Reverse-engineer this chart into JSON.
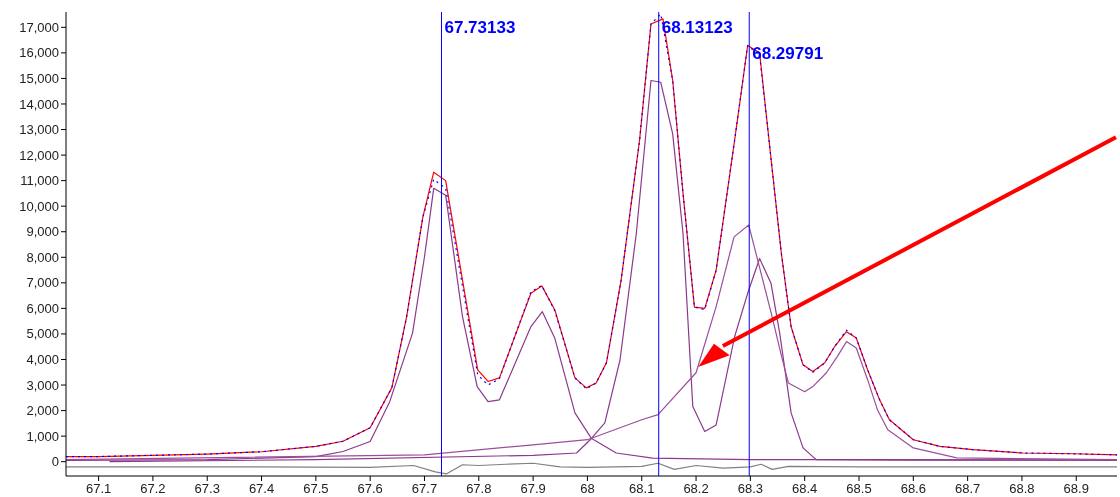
{
  "chart_data": {
    "type": "line",
    "xlim": [
      67.04,
      68.975
    ],
    "ylim": [
      -560,
      17600
    ],
    "xticks": [
      67.1,
      67.2,
      67.3,
      67.4,
      67.5,
      67.6,
      67.7,
      67.8,
      67.9,
      68,
      68.1,
      68.2,
      68.3,
      68.4,
      68.5,
      68.6,
      68.7,
      68.8,
      68.9
    ],
    "yticks": [
      0,
      {
        "value": 1000,
        "label": "1,000"
      },
      {
        "value": 2000,
        "label": "2,000"
      },
      {
        "value": 3000,
        "label": "3,000"
      },
      {
        "value": 4000,
        "label": "4,000"
      },
      {
        "value": 5000,
        "label": "5,000"
      },
      {
        "value": 6000,
        "label": "6,000"
      },
      {
        "value": 7000,
        "label": "7,000"
      },
      {
        "value": 8000,
        "label": "8,000"
      },
      {
        "value": 9000,
        "label": "9,000"
      },
      {
        "value": 10000,
        "label": "10,000"
      },
      {
        "value": 11000,
        "label": "11,000"
      },
      {
        "value": 12000,
        "label": "12,000"
      },
      {
        "value": 13000,
        "label": "13,000"
      },
      {
        "value": 14000,
        "label": "14,000"
      },
      {
        "value": 15000,
        "label": "15,000"
      },
      {
        "value": 16000,
        "label": "16,000"
      },
      {
        "value": 17000,
        "label": "17,000"
      }
    ],
    "grid": false,
    "series": [
      {
        "color": "#808080",
        "x": [
          67.04,
          67.3,
          67.6,
          67.68,
          67.72,
          67.74,
          67.77,
          67.8,
          67.85,
          67.9,
          67.95,
          68.0,
          68.1,
          68.13,
          68.16,
          68.2,
          68.25,
          68.3,
          68.32,
          68.34,
          68.37,
          68.5,
          68.975
        ],
        "values": [
          -200,
          -200,
          -220,
          -150,
          -400,
          -480,
          -120,
          -150,
          -100,
          -60,
          -200,
          -220,
          -180,
          -60,
          -300,
          -150,
          -250,
          -200,
          -100,
          -300,
          -180,
          -200,
          -200
        ]
      },
      {
        "color": "#8b3a8b",
        "x": [
          67.04,
          67.3,
          67.5,
          67.55,
          67.6,
          67.636,
          67.678,
          67.7,
          67.717,
          67.739,
          67.77,
          67.797,
          67.817,
          67.838,
          67.896,
          67.917,
          67.94,
          67.977,
          68.007,
          68.053,
          68.12,
          68.3,
          68.5,
          68.975
        ],
        "values": [
          50,
          80,
          200,
          400,
          790,
          2350,
          5030,
          8020,
          10700,
          10430,
          5680,
          2940,
          2350,
          2420,
          5290,
          5870,
          4830,
          1910,
          920,
          340,
          140,
          80,
          80,
          60
        ]
      },
      {
        "color": "#8b3a8b",
        "x": [
          67.12,
          67.5,
          67.9,
          67.98,
          68.007,
          68.032,
          68.06,
          68.09,
          68.117,
          68.135,
          68.157,
          68.176,
          68.194,
          68.216,
          68.237,
          68.271,
          68.295,
          68.317,
          68.338,
          68.354,
          68.375,
          68.397,
          68.421,
          68.6,
          68.975
        ],
        "values": [
          0,
          80,
          250,
          340,
          900,
          1520,
          3980,
          8930,
          14920,
          14850,
          12830,
          8930,
          2160,
          1180,
          1440,
          4890,
          6590,
          7950,
          6980,
          5030,
          1910,
          540,
          80,
          60,
          60
        ]
      },
      {
        "color": "#9b4f9b",
        "x": [
          67.04,
          67.7,
          67.9,
          68.0,
          68.1,
          68.13,
          68.2,
          68.237,
          68.27,
          68.297,
          68.34,
          68.357,
          68.37,
          68.4,
          68.415,
          68.44,
          68.46,
          68.477,
          68.495,
          68.516,
          68.534,
          68.553,
          68.6,
          68.68,
          68.975
        ],
        "values": [
          80,
          270,
          660,
          860,
          1640,
          1840,
          3480,
          6070,
          8800,
          9260,
          5680,
          4160,
          3080,
          2740,
          2940,
          3480,
          4110,
          4700,
          4450,
          3200,
          2030,
          1250,
          540,
          150,
          80
        ]
      },
      {
        "color": "#0000ff",
        "line_style": "dotted",
        "x": [
          67.04,
          67.1,
          67.3,
          67.4,
          67.5,
          67.55,
          67.6,
          67.64,
          67.667,
          67.697,
          67.717,
          67.739,
          67.798,
          67.817,
          67.838,
          67.896,
          67.916,
          67.94,
          67.977,
          67.998,
          68.016,
          68.035,
          68.062,
          68.096,
          68.117,
          68.135,
          68.157,
          68.176,
          68.197,
          68.216,
          68.237,
          68.271,
          68.295,
          68.317,
          68.341,
          68.357,
          68.375,
          68.397,
          68.415,
          68.437,
          68.455,
          68.477,
          68.495,
          68.516,
          68.538,
          68.556,
          68.6,
          68.649,
          68.71,
          68.802,
          68.894,
          68.975
        ],
        "values": [
          200,
          200,
          300,
          390,
          600,
          800,
          1330,
          2900,
          5660,
          9570,
          11050,
          10700,
          3400,
          3000,
          3250,
          6650,
          6900,
          5900,
          3280,
          2850,
          3080,
          3870,
          7100,
          12580,
          17130,
          17520,
          14920,
          10500,
          6050,
          5950,
          7500,
          12580,
          16290,
          15900,
          11280,
          8160,
          5280,
          3790,
          3500,
          3870,
          4500,
          5150,
          4840,
          3590,
          2420,
          1640,
          860,
          600,
          470,
          340,
          310,
          270
        ]
      },
      {
        "color": "#ff0000",
        "x": [
          67.04,
          67.1,
          67.3,
          67.4,
          67.5,
          67.55,
          67.6,
          67.64,
          67.667,
          67.697,
          67.717,
          67.739,
          67.798,
          67.817,
          67.838,
          67.896,
          67.916,
          67.94,
          67.977,
          67.998,
          68.016,
          68.035,
          68.062,
          68.096,
          68.117,
          68.139,
          68.157,
          68.176,
          68.197,
          68.216,
          68.237,
          68.271,
          68.295,
          68.317,
          68.341,
          68.357,
          68.375,
          68.397,
          68.415,
          68.437,
          68.455,
          68.477,
          68.495,
          68.516,
          68.538,
          68.556,
          68.6,
          68.649,
          68.71,
          68.802,
          68.894,
          68.975
        ],
        "values": [
          200,
          200,
          300,
          390,
          600,
          800,
          1330,
          2900,
          5660,
          9570,
          11330,
          11000,
          3590,
          3140,
          3280,
          6590,
          6880,
          5940,
          3280,
          2890,
          3080,
          3870,
          7100,
          12580,
          17130,
          17330,
          14920,
          10500,
          6050,
          6000,
          7500,
          12580,
          16290,
          16000,
          11280,
          8160,
          5280,
          3790,
          3530,
          3870,
          4500,
          5090,
          4840,
          3590,
          2420,
          1640,
          860,
          600,
          470,
          340,
          310,
          270
        ]
      }
    ],
    "ref_lines": [
      {
        "axis": "x",
        "value": 67.73133,
        "label": "67.73133",
        "color": "#0000ff"
      },
      {
        "axis": "x",
        "value": 68.13123,
        "label": "68.13123",
        "color": "#0000ff"
      },
      {
        "axis": "x",
        "value": 68.29791,
        "label": "68.29791",
        "color": "#0000ff"
      }
    ]
  }
}
